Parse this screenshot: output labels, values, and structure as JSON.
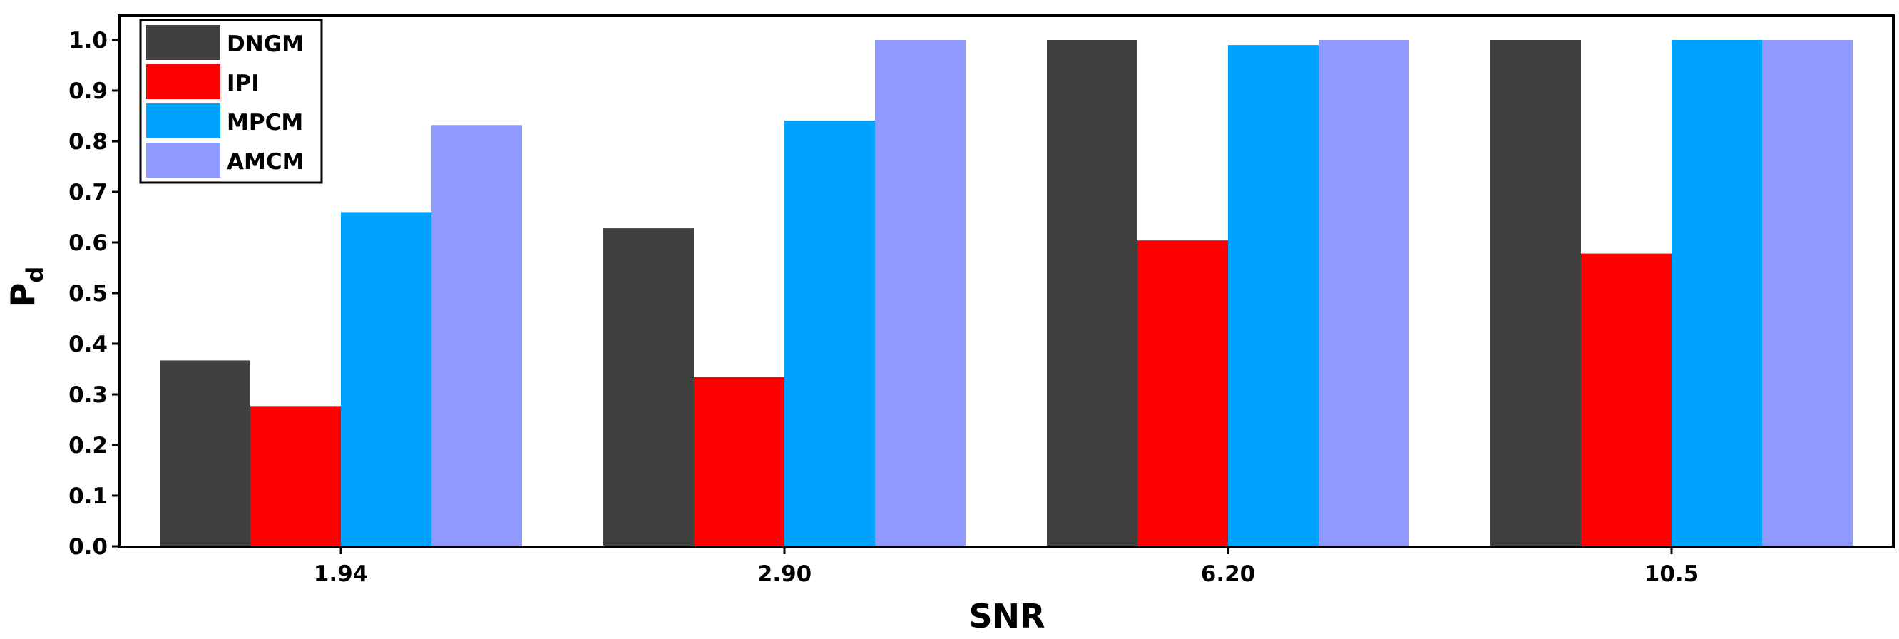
{
  "chart_data": {
    "type": "bar",
    "categories": [
      "1.94",
      "2.90",
      "6.20",
      "10.5"
    ],
    "series": [
      {
        "name": "DNGM",
        "color": "#404040",
        "values": [
          0.367,
          0.628,
          1.0,
          1.0
        ]
      },
      {
        "name": "IPI",
        "color": "#ff0000",
        "values": [
          0.277,
          0.334,
          0.604,
          0.578
        ]
      },
      {
        "name": "MPCM",
        "color": "#00a2ff",
        "values": [
          0.66,
          0.841,
          0.99,
          1.0
        ]
      },
      {
        "name": "AMCM",
        "color": "#9099ff",
        "values": [
          0.832,
          1.0,
          1.0,
          1.0
        ]
      }
    ],
    "xlabel": "SNR",
    "ylabel": {
      "main": "P",
      "subscript": "d"
    },
    "ylim": [
      0,
      1.0
    ],
    "yticks": [
      "0.0",
      "0.1",
      "0.2",
      "0.3",
      "0.4",
      "0.5",
      "0.6",
      "0.7",
      "0.8",
      "0.9",
      "1.0"
    ],
    "legend_position": "top-left",
    "grid": false
  }
}
